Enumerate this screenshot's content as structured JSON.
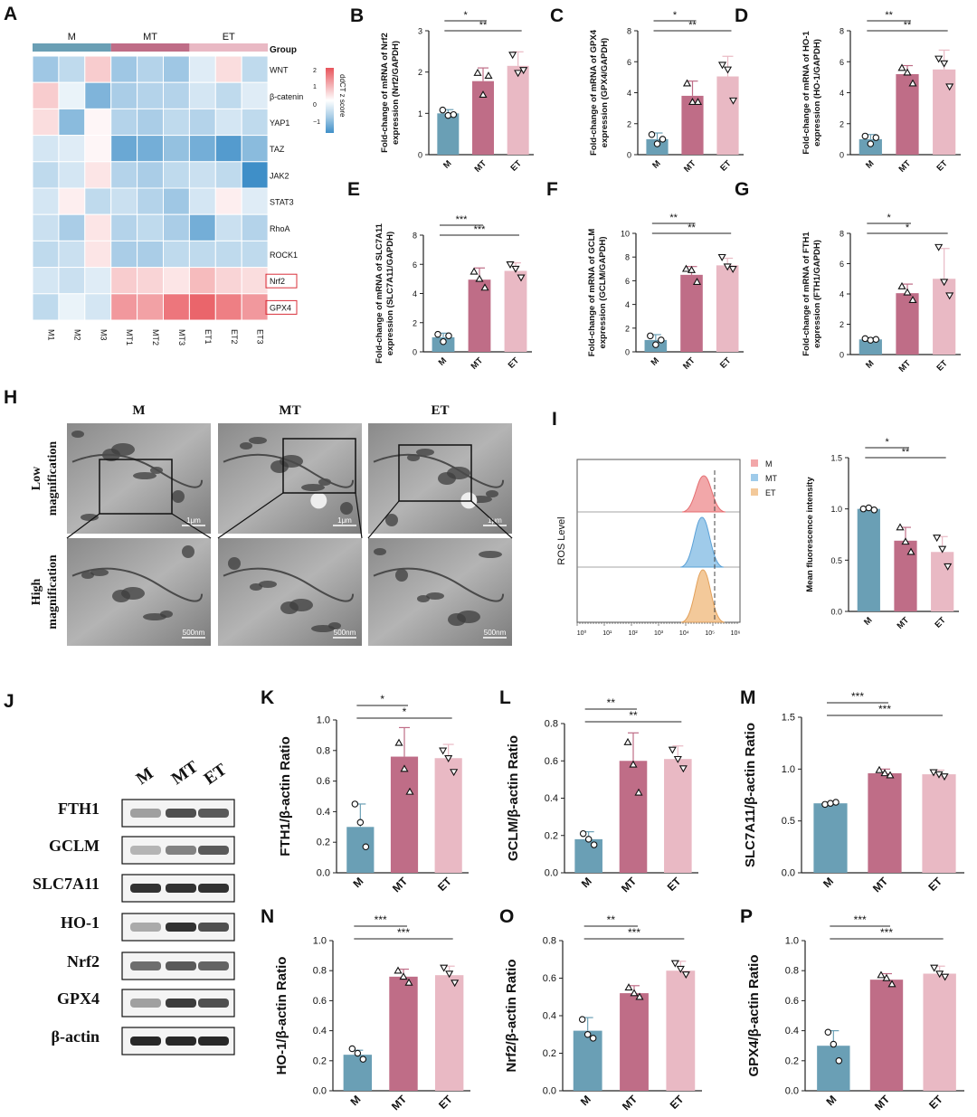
{
  "colors": {
    "M": "#6a9fb5",
    "MT": "#bf6d87",
    "ET": "#e9b9c4",
    "heat_low": "#3f8fc8",
    "heat_high": "#e8545b"
  },
  "heatmap": {
    "letter": "A",
    "group_label": "Group",
    "groups": [
      "M",
      "MT",
      "ET"
    ],
    "samples": [
      "M1",
      "M2",
      "M3",
      "MT1",
      "MT2",
      "MT3",
      "ET1",
      "ET2",
      "ET3"
    ],
    "genes": [
      "WNT",
      "β-catenin",
      "YAP1",
      "TAZ",
      "JAK2",
      "STAT3",
      "RhoA",
      "ROCK1",
      "Nrf2",
      "GPX4"
    ],
    "boxed_genes": [
      "Nrf2",
      "GPX4"
    ],
    "legend_title": "ddCT z score",
    "legend_ticks": [
      "2",
      "1",
      "0",
      "−1"
    ],
    "zscores": [
      [
        -0.9,
        -0.6,
        0.6,
        -0.9,
        -0.7,
        -0.9,
        -0.3,
        0.4,
        -0.6
      ],
      [
        0.6,
        -0.2,
        -1.2,
        -0.8,
        -0.7,
        -0.7,
        -0.4,
        -0.6,
        -0.3
      ],
      [
        0.4,
        -1.1,
        0.1,
        -0.7,
        -0.8,
        -0.6,
        -0.7,
        -0.4,
        -0.6
      ],
      [
        -0.4,
        -0.3,
        0.1,
        -1.4,
        -1.3,
        -1.0,
        -1.3,
        -1.6,
        -1.1
      ],
      [
        -0.6,
        -0.4,
        0.3,
        -0.7,
        -0.8,
        -0.6,
        -0.5,
        -0.6,
        -1.8
      ],
      [
        -0.4,
        0.2,
        -0.6,
        -0.5,
        -0.7,
        -0.9,
        -0.4,
        0.2,
        -0.3
      ],
      [
        -0.5,
        -0.8,
        0.3,
        -0.7,
        -0.6,
        -0.8,
        -1.3,
        -0.5,
        -0.7
      ],
      [
        -0.6,
        -0.5,
        0.3,
        -0.8,
        -0.8,
        -0.6,
        -0.6,
        -0.6,
        -0.6
      ],
      [
        -0.4,
        -0.5,
        -0.3,
        0.6,
        0.5,
        0.3,
        0.8,
        0.5,
        0.4
      ],
      [
        -0.6,
        -0.2,
        -0.4,
        1.2,
        1.1,
        1.6,
        1.8,
        1.5,
        1.2
      ]
    ]
  },
  "chart_data": [
    {
      "id": "B",
      "type": "bar",
      "categories": [
        "M",
        "MT",
        "ET"
      ],
      "values": [
        1.0,
        1.78,
        2.15
      ],
      "errors": [
        0.09,
        0.32,
        0.34
      ],
      "points": [
        [
          1.08,
          0.95,
          0.97
        ],
        [
          1.98,
          1.45,
          1.91
        ],
        [
          2.42,
          1.98,
          2.05
        ]
      ],
      "ylabel": "Fold-change of mRNA of Nrf2 expression (Nrf2/GAPDH)",
      "ylim": [
        0,
        3
      ],
      "yticks": [
        0,
        1,
        2,
        3
      ],
      "sig": [
        {
          "from": 0,
          "to": 1,
          "label": "*"
        },
        {
          "from": 0,
          "to": 2,
          "label": "**"
        }
      ]
    },
    {
      "id": "C",
      "type": "bar",
      "categories": [
        "M",
        "MT",
        "ET"
      ],
      "values": [
        1.0,
        3.8,
        5.05
      ],
      "errors": [
        0.4,
        0.95,
        1.3
      ],
      "points": [
        [
          1.3,
          0.7,
          1.0
        ],
        [
          4.6,
          3.4,
          3.4
        ],
        [
          5.8,
          5.5,
          3.5
        ]
      ],
      "ylabel": "Fold-change of mRNA of GPX4 expression (GPX4/GAPDH)",
      "ylim": [
        0,
        8
      ],
      "yticks": [
        0,
        2,
        4,
        6,
        8
      ],
      "sig": [
        {
          "from": 0,
          "to": 1,
          "label": "*"
        },
        {
          "from": 0,
          "to": 2,
          "label": "**"
        }
      ]
    },
    {
      "id": "D",
      "type": "bar",
      "categories": [
        "M",
        "MT",
        "ET"
      ],
      "values": [
        1.0,
        5.2,
        5.5
      ],
      "errors": [
        0.3,
        0.55,
        1.25
      ],
      "points": [
        [
          1.2,
          0.7,
          1.1
        ],
        [
          5.6,
          5.3,
          4.6
        ],
        [
          6.2,
          5.9,
          4.4
        ]
      ],
      "ylabel": "Fold-change of mRNA of HO-1 expression (HO-1/GAPDH)",
      "ylim": [
        0,
        8
      ],
      "yticks": [
        0,
        2,
        4,
        6,
        8
      ],
      "sig": [
        {
          "from": 0,
          "to": 1,
          "label": "**"
        },
        {
          "from": 0,
          "to": 2,
          "label": "**"
        }
      ]
    },
    {
      "id": "E",
      "type": "bar",
      "categories": [
        "M",
        "MT",
        "ET"
      ],
      "values": [
        1.0,
        4.95,
        5.55
      ],
      "errors": [
        0.28,
        0.8,
        0.55
      ],
      "points": [
        [
          1.2,
          0.7,
          1.1
        ],
        [
          5.5,
          5.0,
          4.4
        ],
        [
          6.0,
          5.7,
          5.1
        ]
      ],
      "ylabel": "Fold-change of mRNA of SLC7A11 expression (SLC7A11/GAPDH)",
      "ylim": [
        0,
        8
      ],
      "yticks": [
        0,
        2,
        4,
        6,
        8
      ],
      "sig": [
        {
          "from": 0,
          "to": 1,
          "label": "***"
        },
        {
          "from": 0,
          "to": 2,
          "label": "***"
        }
      ]
    },
    {
      "id": "F",
      "type": "bar",
      "categories": [
        "M",
        "MT",
        "ET"
      ],
      "values": [
        1.0,
        6.5,
        7.3
      ],
      "errors": [
        0.45,
        0.7,
        0.6
      ],
      "points": [
        [
          1.35,
          0.6,
          1.0
        ],
        [
          7.0,
          6.9,
          5.9
        ],
        [
          8.0,
          7.2,
          7.0
        ]
      ],
      "ylabel": "Fold-change of mRNA of GCLM expression (GCLM/GAPDH)",
      "ylim": [
        0,
        10
      ],
      "yticks": [
        0,
        2,
        4,
        6,
        8,
        10
      ],
      "sig": [
        {
          "from": 0,
          "to": 1,
          "label": "**"
        },
        {
          "from": 0,
          "to": 2,
          "label": "**"
        }
      ]
    },
    {
      "id": "G",
      "type": "bar",
      "categories": [
        "M",
        "MT",
        "ET"
      ],
      "values": [
        1.0,
        4.05,
        5.0
      ],
      "errors": [
        0.1,
        0.6,
        2.0
      ],
      "points": [
        [
          1.05,
          0.95,
          1.0
        ],
        [
          4.5,
          4.1,
          3.6
        ],
        [
          7.1,
          4.8,
          3.9
        ]
      ],
      "ylabel": "Fold-change of mRNA of FTH1 expression (FTH1/GAPDH)",
      "ylim": [
        0,
        8
      ],
      "yticks": [
        0,
        2,
        4,
        6,
        8
      ],
      "sig": [
        {
          "from": 0,
          "to": 1,
          "label": "*"
        },
        {
          "from": 0,
          "to": 2,
          "label": "*"
        }
      ]
    },
    {
      "id": "I",
      "type": "bar",
      "categories": [
        "M",
        "MT",
        "ET"
      ],
      "values": [
        1.0,
        0.69,
        0.58
      ],
      "errors": [
        0.01,
        0.13,
        0.15
      ],
      "points": [
        [
          1.0,
          1.01,
          0.99
        ],
        [
          0.82,
          0.68,
          0.58
        ],
        [
          0.72,
          0.61,
          0.44
        ]
      ],
      "ylabel": "Mean fluorescence intensity",
      "ylim": [
        0,
        1.5
      ],
      "yticks": [
        "0.0",
        "0.5",
        "1.0",
        "1.5"
      ],
      "sig": [
        {
          "from": 0,
          "to": 1,
          "label": "*"
        },
        {
          "from": 0,
          "to": 2,
          "label": "**"
        }
      ]
    },
    {
      "id": "K",
      "type": "bar",
      "categories": [
        "M",
        "MT",
        "ET"
      ],
      "values": [
        0.3,
        0.76,
        0.75
      ],
      "errors": [
        0.15,
        0.19,
        0.09
      ],
      "points": [
        [
          0.45,
          0.33,
          0.17
        ],
        [
          0.85,
          0.68,
          0.53
        ],
        [
          0.8,
          0.75,
          0.66
        ]
      ],
      "ylabel": "FTH1/β-actin Ratio",
      "ylim": [
        0,
        1.0
      ],
      "yticks": [
        "0.0",
        "0.2",
        "0.4",
        "0.6",
        "0.8",
        "1.0"
      ],
      "sig": [
        {
          "from": 0,
          "to": 1,
          "label": "*"
        },
        {
          "from": 0,
          "to": 2,
          "label": "*"
        }
      ]
    },
    {
      "id": "L",
      "type": "bar",
      "categories": [
        "M",
        "MT",
        "ET"
      ],
      "values": [
        0.18,
        0.6,
        0.61
      ],
      "errors": [
        0.04,
        0.15,
        0.07
      ],
      "points": [
        [
          0.21,
          0.18,
          0.15
        ],
        [
          0.7,
          0.58,
          0.43
        ],
        [
          0.66,
          0.61,
          0.56
        ]
      ],
      "ylabel": "GCLM/β-actin Ratio",
      "ylim": [
        0,
        0.8
      ],
      "yticks": [
        "0.0",
        "0.2",
        "0.4",
        "0.6",
        "0.8"
      ],
      "sig": [
        {
          "from": 0,
          "to": 1,
          "label": "**"
        },
        {
          "from": 0,
          "to": 2,
          "label": "**"
        }
      ]
    },
    {
      "id": "M",
      "type": "bar",
      "categories": [
        "M",
        "MT",
        "ET"
      ],
      "values": [
        0.67,
        0.96,
        0.95
      ],
      "errors": [
        0.01,
        0.04,
        0.04
      ],
      "points": [
        [
          0.66,
          0.67,
          0.68
        ],
        [
          0.99,
          0.96,
          0.94
        ],
        [
          0.97,
          0.95,
          0.93
        ]
      ],
      "ylabel": "SLC7A11/β-actin Ratio",
      "ylim": [
        0,
        1.5
      ],
      "yticks": [
        "0.0",
        "0.5",
        "1.0",
        "1.5"
      ],
      "sig": [
        {
          "from": 0,
          "to": 1,
          "label": "***"
        },
        {
          "from": 0,
          "to": 2,
          "label": "***"
        }
      ]
    },
    {
      "id": "N",
      "type": "bar",
      "categories": [
        "M",
        "MT",
        "ET"
      ],
      "values": [
        0.24,
        0.76,
        0.77
      ],
      "errors": [
        0.03,
        0.05,
        0.06
      ],
      "points": [
        [
          0.28,
          0.25,
          0.21
        ],
        [
          0.8,
          0.76,
          0.72
        ],
        [
          0.82,
          0.78,
          0.72
        ]
      ],
      "ylabel": "HO-1/β-actin Ratio",
      "ylim": [
        0,
        1.0
      ],
      "yticks": [
        "0.0",
        "0.2",
        "0.4",
        "0.6",
        "0.8",
        "1.0"
      ],
      "sig": [
        {
          "from": 0,
          "to": 1,
          "label": "***"
        },
        {
          "from": 0,
          "to": 2,
          "label": "***"
        }
      ]
    },
    {
      "id": "O",
      "type": "bar",
      "categories": [
        "M",
        "MT",
        "ET"
      ],
      "values": [
        0.32,
        0.52,
        0.64
      ],
      "errors": [
        0.07,
        0.04,
        0.05
      ],
      "points": [
        [
          0.38,
          0.3,
          0.28
        ],
        [
          0.55,
          0.52,
          0.5
        ],
        [
          0.68,
          0.65,
          0.62
        ]
      ],
      "ylabel": "Nrf2/β-actin Ratio",
      "ylim": [
        0,
        0.8
      ],
      "yticks": [
        "0.0",
        "0.2",
        "0.4",
        "0.6",
        "0.8"
      ],
      "sig": [
        {
          "from": 0,
          "to": 1,
          "label": "**"
        },
        {
          "from": 0,
          "to": 2,
          "label": "***"
        }
      ]
    },
    {
      "id": "P",
      "type": "bar",
      "categories": [
        "M",
        "MT",
        "ET"
      ],
      "values": [
        0.3,
        0.74,
        0.78
      ],
      "errors": [
        0.1,
        0.04,
        0.05
      ],
      "points": [
        [
          0.39,
          0.31,
          0.2
        ],
        [
          0.77,
          0.75,
          0.71
        ],
        [
          0.82,
          0.78,
          0.76
        ]
      ],
      "ylabel": "GPX4/β-actin Ratio",
      "ylim": [
        0,
        1.0
      ],
      "yticks": [
        "0.0",
        "0.2",
        "0.4",
        "0.6",
        "0.8",
        "1.0"
      ],
      "sig": [
        {
          "from": 0,
          "to": 1,
          "label": "***"
        },
        {
          "from": 0,
          "to": 2,
          "label": "***"
        }
      ]
    }
  ],
  "tem": {
    "letter": "H",
    "columns": [
      "M",
      "MT",
      "ET"
    ],
    "rows": [
      "Low magnification",
      "High magnification"
    ],
    "scale_low": "1μm",
    "scale_high": "500nm"
  },
  "flow": {
    "letter": "I",
    "ylabel": "ROS Level",
    "legend": [
      "M",
      "MT",
      "ET"
    ],
    "xticks": [
      "10⁰",
      "10¹",
      "10²",
      "10³",
      "10⁴",
      "10⁵",
      "10⁶"
    ]
  },
  "western": {
    "letter": "J",
    "lanes": [
      "M",
      "MT",
      "ET"
    ],
    "proteins": [
      "FTH1",
      "GCLM",
      "SLC7A11",
      "HO-1",
      "Nrf2",
      "GPX4",
      "β-actin"
    ],
    "intensity": [
      [
        0.35,
        0.75,
        0.7
      ],
      [
        0.25,
        0.5,
        0.7
      ],
      [
        0.9,
        0.9,
        0.9
      ],
      [
        0.3,
        0.9,
        0.75
      ],
      [
        0.6,
        0.7,
        0.65
      ],
      [
        0.35,
        0.85,
        0.75
      ],
      [
        0.95,
        0.95,
        0.95
      ]
    ]
  }
}
